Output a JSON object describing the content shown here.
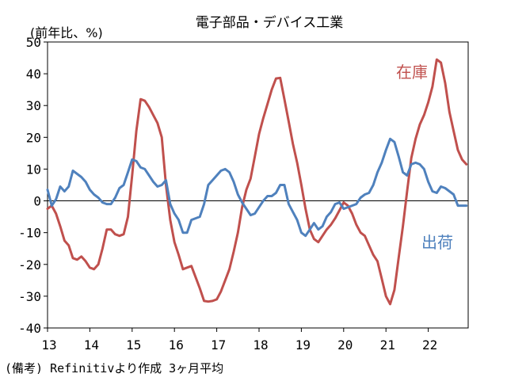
{
  "chart_data": {
    "type": "line",
    "title": "電子部品・デバイス工業",
    "ylabel": "(前年比、%)",
    "note": "(備考) Refinitivより作成 3ヶ月平均",
    "ylim": [
      -40,
      50
    ],
    "xlim": [
      2013.0,
      2022.9
    ],
    "yticks": [
      50,
      40,
      30,
      20,
      10,
      0,
      -10,
      -20,
      -30,
      -40
    ],
    "xticks": [
      "13",
      "14",
      "15",
      "16",
      "17",
      "18",
      "19",
      "20",
      "21",
      "22"
    ],
    "grid": false,
    "series": [
      {
        "name": "在庫",
        "color": "#c0504d",
        "x": [
          2013.0,
          2013.1,
          2013.2,
          2013.3,
          2013.4,
          2013.5,
          2013.6,
          2013.7,
          2013.8,
          2013.9,
          2014.0,
          2014.1,
          2014.2,
          2014.3,
          2014.4,
          2014.5,
          2014.6,
          2014.7,
          2014.8,
          2014.9,
          2015.0,
          2015.1,
          2015.2,
          2015.3,
          2015.4,
          2015.5,
          2015.6,
          2015.7,
          2015.8,
          2015.9,
          2016.0,
          2016.1,
          2016.2,
          2016.3,
          2016.4,
          2016.5,
          2016.6,
          2016.7,
          2016.8,
          2016.9,
          2017.0,
          2017.1,
          2017.2,
          2017.3,
          2017.4,
          2017.5,
          2017.6,
          2017.7,
          2017.8,
          2017.9,
          2018.0,
          2018.1,
          2018.2,
          2018.3,
          2018.4,
          2018.5,
          2018.6,
          2018.7,
          2018.8,
          2018.9,
          2019.0,
          2019.1,
          2019.2,
          2019.3,
          2019.4,
          2019.5,
          2019.6,
          2019.7,
          2019.8,
          2019.9,
          2020.0,
          2020.1,
          2020.2,
          2020.3,
          2020.4,
          2020.5,
          2020.6,
          2020.7,
          2020.8,
          2020.9,
          2021.0,
          2021.1,
          2021.2,
          2021.3,
          2021.4,
          2021.5,
          2021.6,
          2021.7,
          2021.8,
          2021.9,
          2022.0,
          2022.1,
          2022.2,
          2022.3,
          2022.4,
          2022.5,
          2022.6,
          2022.7,
          2022.8,
          2022.9
        ],
        "values": [
          -2.5,
          -1.5,
          -4.0,
          -8.0,
          -12.5,
          -14.0,
          -18.0,
          -18.5,
          -17.5,
          -19.0,
          -21.0,
          -21.5,
          -20.0,
          -15.0,
          -9.0,
          -9.0,
          -10.5,
          -11.0,
          -10.5,
          -5.0,
          8.0,
          22.0,
          32.0,
          31.5,
          29.5,
          27.0,
          24.5,
          20.0,
          5.0,
          -6.0,
          -13.0,
          -17.0,
          -21.5,
          -21.0,
          -20.5,
          -24.0,
          -27.5,
          -31.5,
          -31.7,
          -31.5,
          -31.0,
          -28.5,
          -25.0,
          -21.5,
          -16.0,
          -10.0,
          -2.0,
          3.5,
          7.0,
          14.0,
          21.0,
          26.0,
          30.5,
          35.0,
          38.5,
          38.7,
          32.0,
          25.0,
          18.0,
          12.0,
          5.0,
          -2.5,
          -9.0,
          -12.0,
          -13.0,
          -11.0,
          -9.0,
          -7.5,
          -5.5,
          -3.0,
          -0.5,
          -1.5,
          -4.0,
          -7.5,
          -10.0,
          -11.0,
          -14.0,
          -17.0,
          -19.0,
          -24.5,
          -30.0,
          -32.5,
          -28.0,
          -18.0,
          -8.0,
          3.0,
          13.5,
          19.5,
          24.0,
          27.0,
          31.0,
          36.0,
          44.5,
          43.5,
          37.0,
          28.0,
          22.0,
          16.0,
          13.0,
          11.5
        ]
      },
      {
        "name": "出荷",
        "color": "#4f81bd",
        "x": [
          2013.0,
          2013.1,
          2013.2,
          2013.3,
          2013.4,
          2013.5,
          2013.6,
          2013.7,
          2013.8,
          2013.9,
          2014.0,
          2014.1,
          2014.2,
          2014.3,
          2014.4,
          2014.5,
          2014.6,
          2014.7,
          2014.8,
          2014.9,
          2015.0,
          2015.1,
          2015.2,
          2015.3,
          2015.4,
          2015.5,
          2015.6,
          2015.7,
          2015.8,
          2015.9,
          2016.0,
          2016.1,
          2016.2,
          2016.3,
          2016.4,
          2016.5,
          2016.6,
          2016.7,
          2016.8,
          2016.9,
          2017.0,
          2017.1,
          2017.2,
          2017.3,
          2017.4,
          2017.5,
          2017.6,
          2017.7,
          2017.8,
          2017.9,
          2018.0,
          2018.1,
          2018.2,
          2018.3,
          2018.4,
          2018.5,
          2018.6,
          2018.7,
          2018.8,
          2018.9,
          2019.0,
          2019.1,
          2019.2,
          2019.3,
          2019.4,
          2019.5,
          2019.6,
          2019.7,
          2019.8,
          2019.9,
          2020.0,
          2020.1,
          2020.2,
          2020.3,
          2020.4,
          2020.5,
          2020.6,
          2020.7,
          2020.8,
          2020.9,
          2021.0,
          2021.1,
          2021.2,
          2021.3,
          2021.4,
          2021.5,
          2021.6,
          2021.7,
          2021.8,
          2021.9,
          2022.0,
          2022.1,
          2022.2,
          2022.3,
          2022.4,
          2022.5,
          2022.6,
          2022.7,
          2022.8,
          2022.9
        ],
        "values": [
          3.5,
          -1.5,
          0.5,
          4.5,
          3.0,
          4.5,
          9.5,
          8.5,
          7.5,
          6.0,
          3.5,
          2.0,
          1.0,
          -0.5,
          -1.0,
          -1.0,
          1.0,
          4.0,
          5.0,
          9.0,
          13.0,
          12.5,
          10.5,
          10.0,
          8.0,
          6.0,
          4.5,
          5.0,
          6.5,
          -1.0,
          -4.0,
          -6.0,
          -10.0,
          -10.0,
          -6.0,
          -5.5,
          -5.0,
          -1.0,
          5.0,
          6.5,
          8.0,
          9.5,
          10.0,
          9.0,
          6.0,
          2.0,
          -0.5,
          -2.5,
          -4.5,
          -4.0,
          -2.0,
          0.0,
          1.5,
          1.5,
          2.5,
          5.0,
          5.0,
          -1.0,
          -3.5,
          -6.0,
          -10.0,
          -11.0,
          -9.0,
          -7.0,
          -9.0,
          -8.0,
          -5.0,
          -3.5,
          -1.0,
          -0.5,
          -2.5,
          -2.0,
          -1.5,
          -1.0,
          1.0,
          2.0,
          2.5,
          5.0,
          9.0,
          12.0,
          16.0,
          19.5,
          18.5,
          14.0,
          9.0,
          8.0,
          11.5,
          12.0,
          11.5,
          10.0,
          6.0,
          3.0,
          2.5,
          4.5,
          4.0,
          3.0,
          2.0,
          -1.5,
          -1.5,
          -1.5
        ]
      }
    ]
  }
}
